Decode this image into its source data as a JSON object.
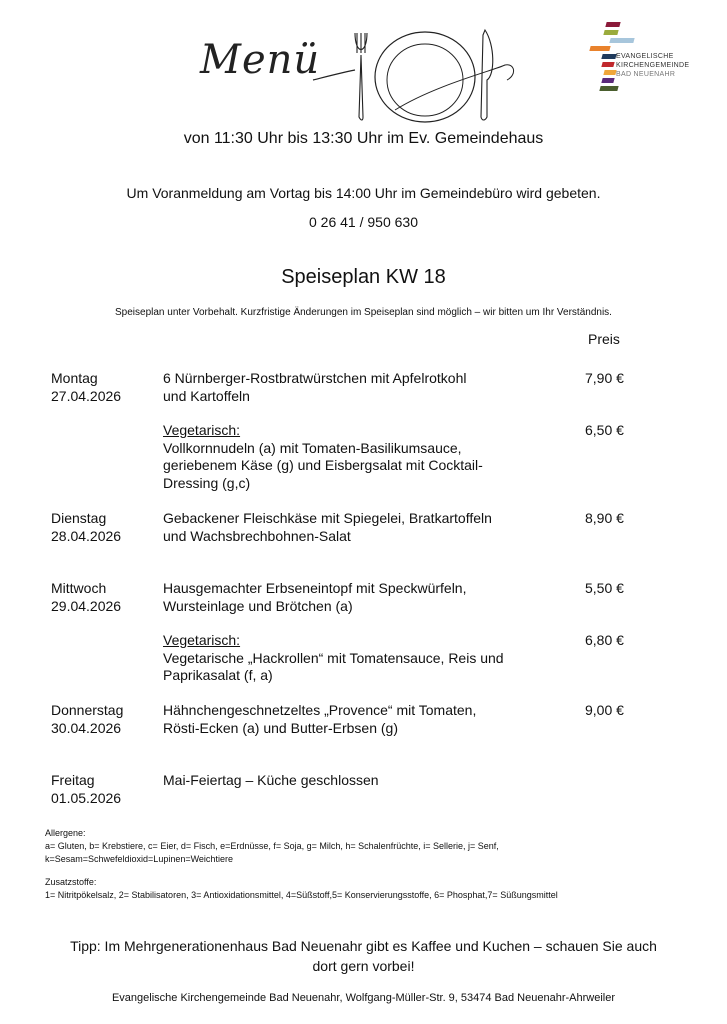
{
  "header": {
    "logo_script": "Menü",
    "org_logo_lines": [
      "EVANGELISCHE",
      "KIRCHENGEMEINDE",
      "BAD NEUENAHR"
    ],
    "org_logo_colors": [
      "#8b1a3a",
      "#9aab3c",
      "#a7c6dc",
      "#e9822c",
      "#1f3a5c",
      "#c0282d",
      "#f0a73a",
      "#5b2a7a",
      "#4a5e2e"
    ],
    "hours": "von 11:30 Uhr bis 13:30 Uhr im Ev. Gemeindehaus",
    "registration": "Um Voranmeldung am Vortag bis 14:00 Uhr im Gemeindebüro wird gebeten.",
    "phone": "0 26 41 / 950 630"
  },
  "title": "Speiseplan KW 18",
  "disclaimer": "Speiseplan unter Vorbehalt. Kurzfristige Änderungen im Speiseplan sind möglich – wir bitten um Ihr Verständnis.",
  "price_header": "Preis",
  "days": [
    {
      "day": "Montag",
      "date": "27.04.2026",
      "dish": [
        "6 Nürnberger-Rostbratwürstchen mit Apfelrotkohl",
        "und Kartoffeln"
      ],
      "price": "7,90 €",
      "veg": {
        "label": "Vegetarisch:",
        "dish": [
          "Vollkornnudeln (a) mit Tomaten-Basilikumsauce,",
          "geriebenem Käse (g) und Eisbergsalat mit Cocktail-",
          "Dressing (g,c)"
        ],
        "price": "6,50 €"
      }
    },
    {
      "day": "Dienstag",
      "date": "28.04.2026",
      "dish": [
        "Gebackener Fleischkäse mit Spiegelei, Bratkartoffeln",
        "und Wachsbrechbohnen-Salat"
      ],
      "price": "8,90 €"
    },
    {
      "day": "Mittwoch",
      "date": "29.04.2026",
      "dish": [
        "Hausgemachter Erbseneintopf mit Speckwürfeln,",
        "Wursteinlage und Brötchen (a)"
      ],
      "price": "5,50 €",
      "veg": {
        "label": "Vegetarisch:",
        "dish": [
          "Vegetarische „Hackrollen“ mit Tomatensauce, Reis und",
          "Paprikasalat (f, a)"
        ],
        "price": "6,80 €"
      }
    },
    {
      "day": "Donnerstag",
      "date": "30.04.2026",
      "dish": [
        "Hähnchengeschnetzeltes „Provence“ mit Tomaten,",
        "Rösti-Ecken (a) und Butter-Erbsen (g)"
      ],
      "price": "9,00 €"
    },
    {
      "day": "Freitag",
      "date": "01.05.2026",
      "dish": [
        "Mai-Feiertag – Küche geschlossen"
      ],
      "price": ""
    }
  ],
  "allergens": {
    "label": "Allergene:",
    "lines": [
      "a= Gluten, b= Krebstiere, c= Eier, d= Fisch, e=Erdnüsse, f= Soja, g= Milch, h= Schalenfrüchte, i= Sellerie, j= Senf,",
      "k=Sesam=Schwefeldioxid=Lupinen=Weichtiere"
    ]
  },
  "additives": {
    "label": "Zusatzstoffe:",
    "line": "1= Nitritpökelsalz, 2= Stabilisatoren, 3= Antioxidationsmittel, 4=Süßstoff,5= Konservierungsstoffe, 6= Phosphat,7= Süßungsmittel"
  },
  "tip": [
    "Tipp: Im Mehrgenerationenhaus Bad Neuenahr gibt es Kaffee und Kuchen – schauen Sie auch",
    "dort gern vorbei!"
  ],
  "footer": "Evangelische Kirchengemeinde Bad Neuenahr, Wolfgang-Müller-Str. 9, 53474 Bad Neuenahr-Ahrweiler"
}
